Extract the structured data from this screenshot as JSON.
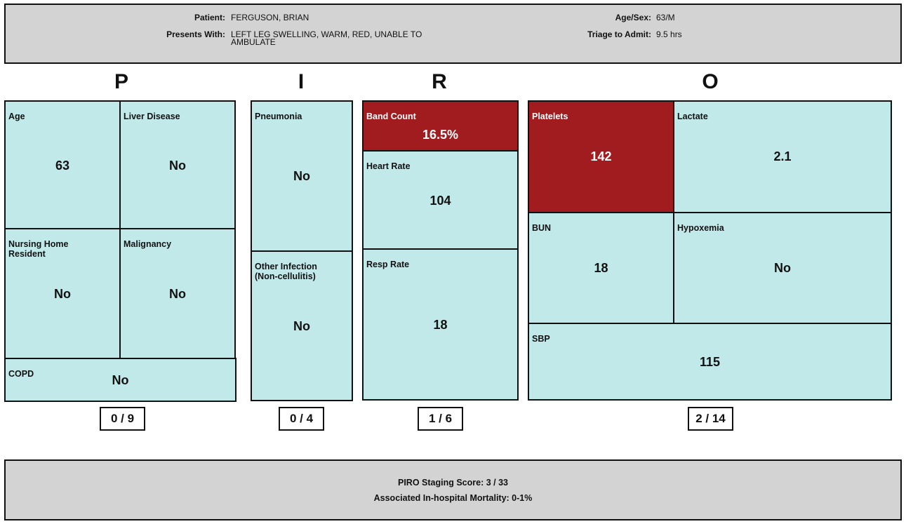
{
  "header": {
    "patient_label": "Patient:",
    "patient_value": "FERGUSON, BRIAN",
    "presents_label": "Presents With:",
    "presents_value_line1": "LEFT LEG SWELLING, WARM, RED, UNABLE TO",
    "presents_value_line2": "AMBULATE",
    "agesex_label": "Age/Sex:",
    "agesex_value": "63/M",
    "triage_label": "Triage to Admit:",
    "triage_value": "9.5 hrs"
  },
  "sections": {
    "p": {
      "letter": "P",
      "score": "0 / 9",
      "age": {
        "label": "Age",
        "value": "63"
      },
      "liver": {
        "label": "Liver Disease",
        "value": "No"
      },
      "nursing": {
        "label_line1": "Nursing Home",
        "label_line2": "Resident",
        "value": "No"
      },
      "malignancy": {
        "label": "Malignancy",
        "value": "No"
      },
      "copd": {
        "label": "COPD",
        "value": "No"
      }
    },
    "i": {
      "letter": "I",
      "score": "0 / 4",
      "pneumonia": {
        "label": "Pneumonia",
        "value": "No"
      },
      "other": {
        "label_line1": "Other Infection",
        "label_line2": "(Non-cellulitis)",
        "value": "No"
      }
    },
    "r": {
      "letter": "R",
      "score": "1 / 6",
      "band": {
        "label": "Band Count",
        "value": "16.5%"
      },
      "heart": {
        "label": "Heart Rate",
        "value": "104"
      },
      "resp": {
        "label": "Resp Rate",
        "value": "18"
      }
    },
    "o": {
      "letter": "O",
      "score": "2 / 14",
      "platelets": {
        "label": "Platelets",
        "value": "142"
      },
      "lactate": {
        "label": "Lactate",
        "value": "2.1"
      },
      "bun": {
        "label": "BUN",
        "value": "18"
      },
      "hypoxemia": {
        "label": "Hypoxemia",
        "value": "No"
      },
      "sbp": {
        "label": "SBP",
        "value": "115"
      }
    }
  },
  "footer": {
    "staging": "PIRO Staging Score: 3 / 33",
    "mortality": "Associated In-hospital Mortality: 0-1%"
  },
  "colors": {
    "cell_normal": "#c2e9ea",
    "cell_alert": "#a11c1f",
    "panel_gray": "#d3d3d3"
  }
}
